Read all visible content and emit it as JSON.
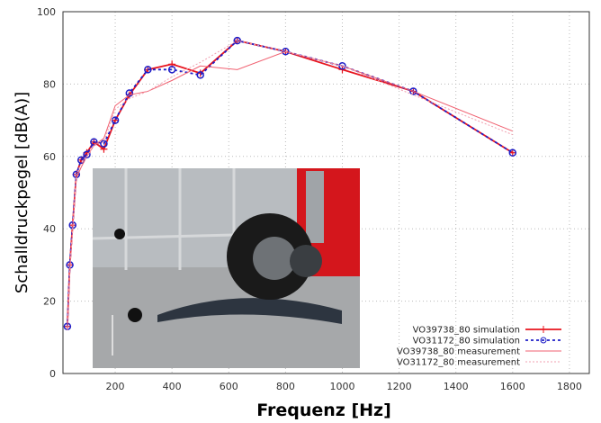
{
  "chart_data": {
    "type": "line",
    "x_label": "Frequenz [Hz]",
    "y_label": "Schalldruckpegel [dB(A)]",
    "x": [
      31.5,
      40,
      50,
      63,
      80,
      100,
      125,
      160,
      200,
      250,
      315,
      400,
      500,
      630,
      800,
      1000,
      1250,
      1600
    ],
    "series": [
      {
        "name": "VO39738_80 simulation",
        "color": "#e8141e",
        "style": "solid-marker-plus",
        "values": [
          13,
          30,
          41,
          55,
          59,
          61,
          64,
          62,
          70,
          77,
          84,
          85.5,
          83,
          92,
          89,
          84,
          78,
          61
        ]
      },
      {
        "name": "VO31172_80 simulation",
        "color": "#1e1ec8",
        "style": "dotted-marker-circle",
        "values": [
          13,
          30,
          41,
          55,
          59,
          60.5,
          64,
          63.5,
          70,
          77.5,
          84,
          84,
          82.5,
          92,
          89,
          85,
          78,
          61
        ]
      },
      {
        "name": "VO39738_80 measurement",
        "color": "#f06070",
        "style": "thin",
        "values": [
          12,
          28,
          40,
          54,
          57,
          60,
          63,
          65,
          74,
          77,
          78,
          81,
          85,
          84,
          89,
          85,
          78,
          67
        ]
      },
      {
        "name": "VO31172_80 measurement",
        "color": "#f0a0b0",
        "style": "thin-dotted",
        "values": [
          12,
          29,
          40,
          55,
          58,
          60,
          63,
          64,
          73,
          76,
          78,
          82,
          86,
          92,
          89,
          85,
          77,
          66
        ]
      }
    ],
    "xlim": [
      16,
      1870
    ],
    "ylim": [
      0,
      100
    ],
    "xticks": [
      200,
      400,
      600,
      800,
      1000,
      1200,
      1400,
      1600,
      1800
    ],
    "yticks": [
      0,
      20,
      40,
      60,
      80,
      100
    ],
    "grid": true,
    "legend": "lower right"
  }
}
